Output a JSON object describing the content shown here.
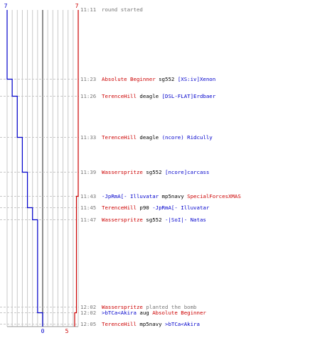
{
  "colors": {
    "team_blue": "#0000cc",
    "team_red": "#cc0000",
    "time_gray": "#777777",
    "event_gray": "#777777",
    "grid": "#c8c8c8",
    "dash": "#c8c8c8",
    "center": "#555555"
  },
  "chart_data": {
    "type": "line",
    "title": "",
    "xlabel": "",
    "ylabel": "",
    "top_labels": {
      "blue": "7",
      "red": "7"
    },
    "bottom_labels": {
      "blue": "0",
      "red": "5"
    },
    "xlim": [
      0,
      7
    ],
    "series": [
      {
        "color": "#0000cc",
        "values": [
          7,
          6,
          6,
          5,
          5,
          4,
          4,
          3,
          3,
          2,
          2,
          1,
          1,
          0
        ]
      },
      {
        "color": "#cc0000",
        "values": [
          7,
          7,
          7,
          7,
          7,
          7,
          7,
          6,
          6,
          6,
          6,
          6,
          5,
          5
        ]
      }
    ],
    "events": [
      {
        "time": "11:11",
        "parts": [
          {
            "text": "round started",
            "color": "#777777"
          }
        ]
      },
      {
        "time": "11:23",
        "parts": [
          {
            "text": "Absolute Beginner",
            "color": "#cc0000"
          },
          {
            "text": " sg552 ",
            "color": "#000000"
          },
          {
            "text": "[XS:iv]Xenon",
            "color": "#0000cc"
          }
        ]
      },
      {
        "time": "11:26",
        "parts": [
          {
            "text": "TerenceHill",
            "color": "#cc0000"
          },
          {
            "text": " deagle ",
            "color": "#000000"
          },
          {
            "text": "[DSL-FLAT]Erdbaer",
            "color": "#0000cc"
          }
        ]
      },
      {
        "time": "11:33",
        "parts": [
          {
            "text": "TerenceHill",
            "color": "#cc0000"
          },
          {
            "text": " deagle ",
            "color": "#000000"
          },
          {
            "text": "(ncore) Ridcully",
            "color": "#0000cc"
          }
        ]
      },
      {
        "time": "11:39",
        "parts": [
          {
            "text": "Wasserspritze",
            "color": "#cc0000"
          },
          {
            "text": " sg552 ",
            "color": "#000000"
          },
          {
            "text": "[ncore]carcass",
            "color": "#0000cc"
          }
        ]
      },
      {
        "time": "11:43",
        "parts": [
          {
            "text": "-JpRmA[- Illuvatar",
            "color": "#0000cc"
          },
          {
            "text": " mp5navy ",
            "color": "#000000"
          },
          {
            "text": "SpecialForcesXMAS",
            "color": "#cc0000"
          }
        ]
      },
      {
        "time": "11:45",
        "parts": [
          {
            "text": "TerenceHill",
            "color": "#cc0000"
          },
          {
            "text": " p90 ",
            "color": "#000000"
          },
          {
            "text": "-JpRmA[- Illuvatar",
            "color": "#0000cc"
          }
        ]
      },
      {
        "time": "11:47",
        "parts": [
          {
            "text": "Wasserspritze",
            "color": "#cc0000"
          },
          {
            "text": " sg552 ",
            "color": "#000000"
          },
          {
            "text": "-|SoI|- Natas",
            "color": "#0000cc"
          }
        ]
      },
      {
        "time": "12:02",
        "parts": [
          {
            "text": "Wasserspritze",
            "color": "#cc0000"
          },
          {
            "text": " planted the bomb",
            "color": "#777777"
          }
        ]
      },
      {
        "time": "12:02",
        "parts": [
          {
            "text": ">bTCa<Akira",
            "color": "#0000cc"
          },
          {
            "text": " aug ",
            "color": "#000000"
          },
          {
            "text": "Absolute Beginner",
            "color": "#cc0000"
          }
        ]
      },
      {
        "time": "12:05",
        "parts": [
          {
            "text": "TerenceHill",
            "color": "#cc0000"
          },
          {
            "text": " mp5navy ",
            "color": "#000000"
          },
          {
            "text": ">bTCa<Akira",
            "color": "#0000cc"
          }
        ]
      }
    ]
  }
}
